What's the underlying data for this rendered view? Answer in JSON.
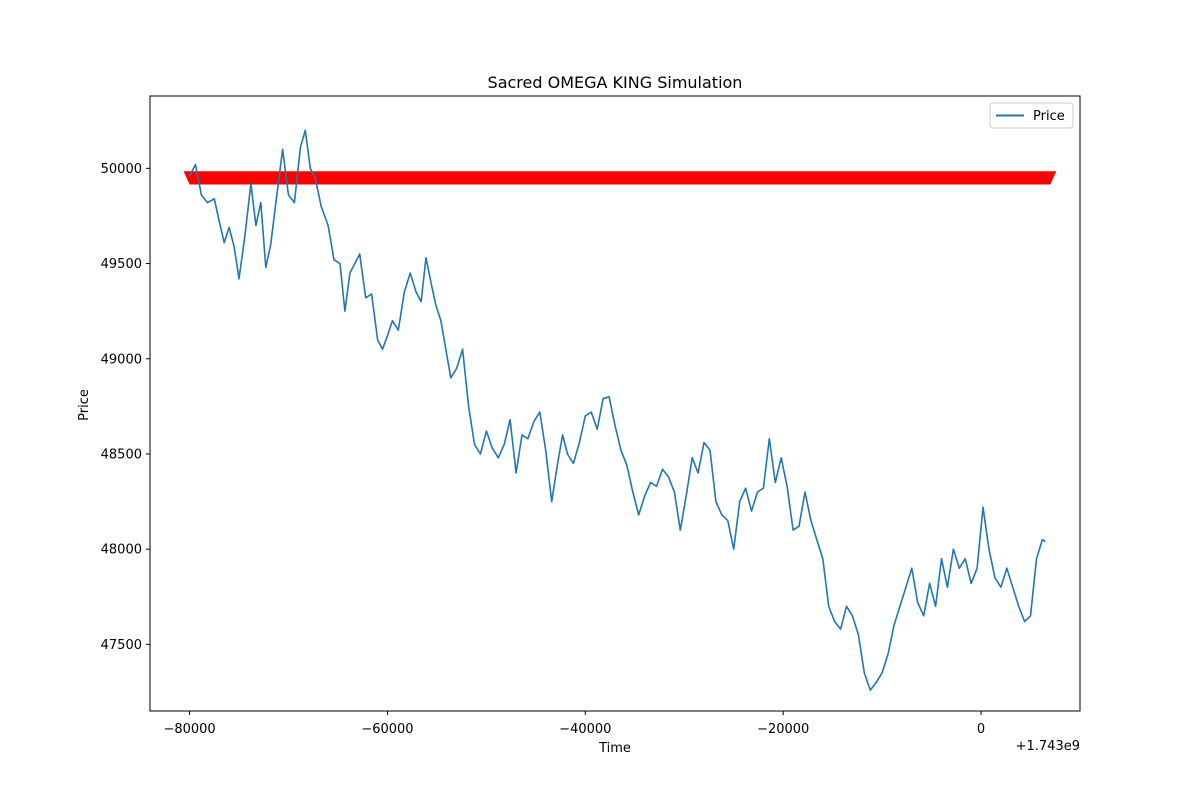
{
  "chart_data": {
    "type": "line",
    "title": "Sacred OMEGA KING Simulation",
    "xlabel": "Time",
    "ylabel": "Price",
    "x_offset_label": "+1.743e9",
    "xlim": [
      -84000,
      10000
    ],
    "ylim": [
      47150,
      50380
    ],
    "x_ticks": [
      -80000,
      -60000,
      -40000,
      -20000,
      0
    ],
    "x_tick_labels": [
      "−80000",
      "−60000",
      "−40000",
      "−20000",
      "0"
    ],
    "y_ticks": [
      47500,
      48000,
      48500,
      49000,
      49500,
      50000
    ],
    "y_tick_labels": [
      "47500",
      "48000",
      "48500",
      "49000",
      "49500",
      "50000"
    ],
    "grid": false,
    "legend": {
      "position": "top-right",
      "entries": [
        "Price"
      ]
    },
    "colors": {
      "price": "#1f77b4",
      "marker_band": "#ff0000",
      "axes": "#000000"
    },
    "series": [
      {
        "name": "Price",
        "x": [
          -80000,
          -79400,
          -78800,
          -78200,
          -77500,
          -77000,
          -76500,
          -76000,
          -75500,
          -75000,
          -74400,
          -73800,
          -73300,
          -72800,
          -72300,
          -71800,
          -71200,
          -70600,
          -70000,
          -69400,
          -68800,
          -68300,
          -67800,
          -67300,
          -66700,
          -66000,
          -65400,
          -64800,
          -64300,
          -63800,
          -63300,
          -62800,
          -62200,
          -61600,
          -61000,
          -60500,
          -60000,
          -59500,
          -58900,
          -58300,
          -57700,
          -57100,
          -56600,
          -56100,
          -55600,
          -55100,
          -54600,
          -54100,
          -53600,
          -53000,
          -52400,
          -51800,
          -51200,
          -50600,
          -50000,
          -49400,
          -48800,
          -48200,
          -47600,
          -47000,
          -46400,
          -45800,
          -45200,
          -44600,
          -44000,
          -43400,
          -42800,
          -42300,
          -41800,
          -41200,
          -40600,
          -40000,
          -39400,
          -38800,
          -38200,
          -37600,
          -37000,
          -36400,
          -35800,
          -35200,
          -34600,
          -34000,
          -33400,
          -32800,
          -32200,
          -31600,
          -31000,
          -30400,
          -29800,
          -29200,
          -28600,
          -28000,
          -27400,
          -26800,
          -26200,
          -25600,
          -25000,
          -24400,
          -23800,
          -23200,
          -22600,
          -22000,
          -21400,
          -20800,
          -20200,
          -19600,
          -19000,
          -18400,
          -17800,
          -17200,
          -16600,
          -16000,
          -15400,
          -14800,
          -14200,
          -13600,
          -13000,
          -12400,
          -11800,
          -11200,
          -10600,
          -10000,
          -9400,
          -8800,
          -8200,
          -7600,
          -7000,
          -6400,
          -5800,
          -5200,
          -4600,
          -4000,
          -3400,
          -2800,
          -2200,
          -1600,
          -1000,
          -400,
          200,
          800,
          1400,
          2000,
          2600,
          3200,
          3800,
          4400,
          5000,
          5600,
          6200,
          6500
        ],
        "values": [
          49960,
          50020,
          49860,
          49820,
          49840,
          49720,
          49610,
          49690,
          49590,
          49420,
          49650,
          49920,
          49700,
          49820,
          49480,
          49600,
          49850,
          50100,
          49860,
          49820,
          50110,
          50200,
          50000,
          49950,
          49800,
          49700,
          49520,
          49500,
          49250,
          49450,
          49500,
          49550,
          49320,
          49340,
          49100,
          49050,
          49120,
          49200,
          49150,
          49350,
          49450,
          49350,
          49300,
          49530,
          49400,
          49280,
          49200,
          49050,
          48900,
          48950,
          49050,
          48750,
          48550,
          48500,
          48620,
          48530,
          48480,
          48550,
          48680,
          48400,
          48600,
          48580,
          48670,
          48720,
          48520,
          48250,
          48450,
          48600,
          48500,
          48450,
          48560,
          48700,
          48720,
          48630,
          48790,
          48800,
          48650,
          48520,
          48440,
          48300,
          48180,
          48280,
          48350,
          48330,
          48420,
          48380,
          48300,
          48100,
          48280,
          48480,
          48400,
          48560,
          48520,
          48250,
          48180,
          48150,
          48000,
          48250,
          48320,
          48200,
          48300,
          48320,
          48580,
          48350,
          48480,
          48330,
          48100,
          48120,
          48300,
          48150,
          48050,
          47950,
          47700,
          47620,
          47580,
          47700,
          47650,
          47550,
          47350,
          47260,
          47300,
          47350,
          47450,
          47600,
          47700,
          47800,
          47900,
          47720,
          47650,
          47820,
          47700,
          47950,
          47800,
          48000,
          47900,
          47950,
          47820,
          47900,
          48220,
          48000,
          47850,
          47800,
          47900,
          47800,
          47700,
          47620,
          47650,
          47950,
          48050,
          48040
        ]
      }
    ],
    "marker_band": {
      "x_start": -80000,
      "x_end": 7000,
      "y_low": 49915,
      "y_high": 49985
    }
  }
}
